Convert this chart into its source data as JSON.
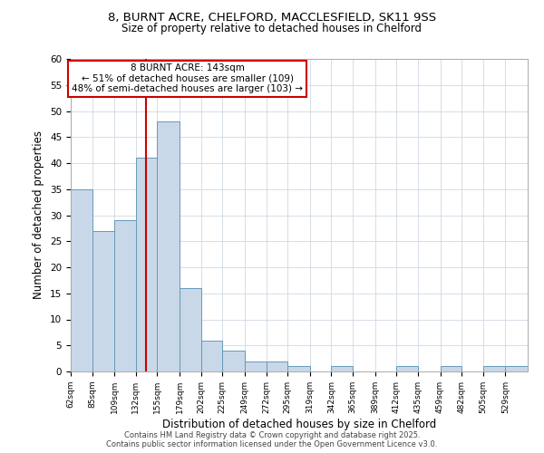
{
  "title1": "8, BURNT ACRE, CHELFORD, MACCLESFIELD, SK11 9SS",
  "title2": "Size of property relative to detached houses in Chelford",
  "xlabel": "Distribution of detached houses by size in Chelford",
  "ylabel": "Number of detached properties",
  "bin_labels": [
    "62sqm",
    "85sqm",
    "109sqm",
    "132sqm",
    "155sqm",
    "179sqm",
    "202sqm",
    "225sqm",
    "249sqm",
    "272sqm",
    "295sqm",
    "319sqm",
    "342sqm",
    "365sqm",
    "389sqm",
    "412sqm",
    "435sqm",
    "459sqm",
    "482sqm",
    "505sqm",
    "529sqm"
  ],
  "bar_values": [
    35,
    27,
    29,
    41,
    48,
    16,
    6,
    4,
    2,
    2,
    1,
    0,
    1,
    0,
    0,
    1,
    0,
    1,
    0,
    1,
    1
  ],
  "bar_color": "#c8d8e8",
  "bar_edgecolor": "#6699bb",
  "property_line_x": 143,
  "bin_edges_values": [
    62,
    85,
    109,
    132,
    155,
    179,
    202,
    225,
    249,
    272,
    295,
    319,
    342,
    365,
    389,
    412,
    435,
    459,
    482,
    505,
    529
  ],
  "bin_width": 23,
  "annotation_title": "8 BURNT ACRE: 143sqm",
  "annotation_line1": "← 51% of detached houses are smaller (109)",
  "annotation_line2": "48% of semi-detached houses are larger (103) →",
  "annotation_box_color": "#ffffff",
  "annotation_box_edgecolor": "#cc0000",
  "vline_color": "#cc0000",
  "ylim": [
    0,
    60
  ],
  "yticks": [
    0,
    5,
    10,
    15,
    20,
    25,
    30,
    35,
    40,
    45,
    50,
    55,
    60
  ],
  "footer1": "Contains HM Land Registry data © Crown copyright and database right 2025.",
  "footer2": "Contains public sector information licensed under the Open Government Licence v3.0.",
  "background_color": "#ffffff",
  "grid_color": "#d0d8e0"
}
